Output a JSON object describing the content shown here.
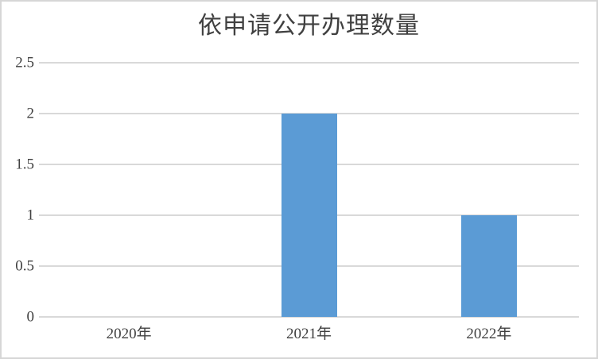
{
  "chart_data": {
    "type": "bar",
    "title": "依申请公开办理数量",
    "categories": [
      "2020年",
      "2021年",
      "2022年"
    ],
    "values": [
      0,
      2,
      1
    ],
    "ylim": [
      0,
      2.5
    ],
    "yticks": [
      0,
      0.5,
      1,
      1.5,
      2,
      2.5
    ],
    "ytick_labels": [
      "0",
      "0.5",
      "1",
      "1.5",
      "2",
      "2.5"
    ],
    "xlabel": "",
    "ylabel": "",
    "grid": true,
    "legend": false,
    "colors": {
      "bar": "#5b9bd5",
      "gridline": "#d9d9d9",
      "text": "#404040",
      "frame_border": "#d6d6d6",
      "background": "#ffffff"
    }
  }
}
